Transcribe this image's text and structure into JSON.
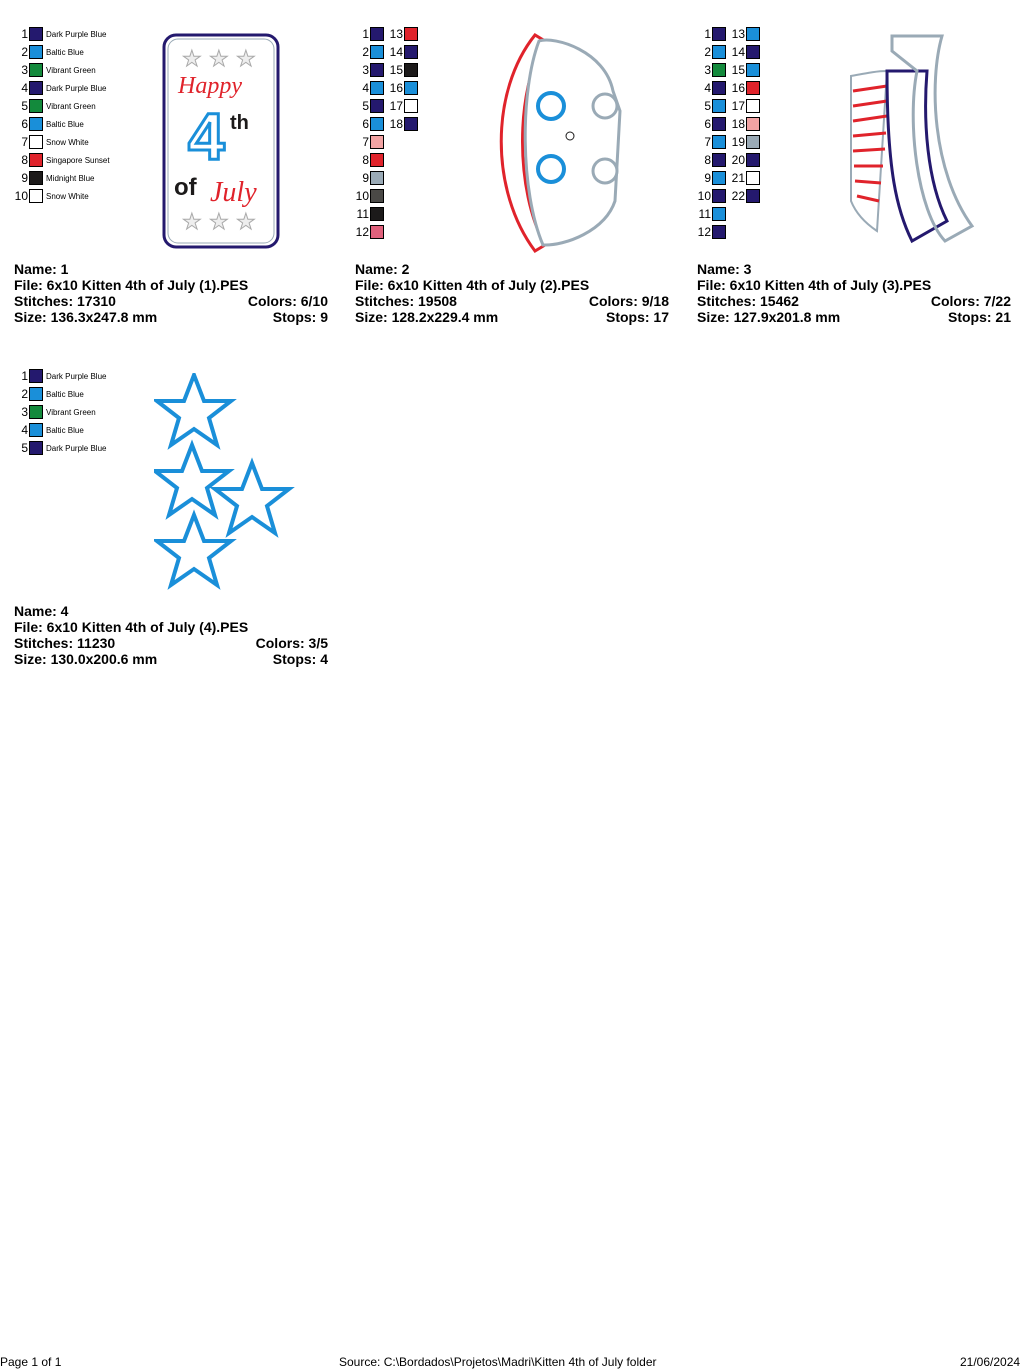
{
  "palette": {
    "navy": "#24196e",
    "blue": "#1a8fd9",
    "green": "#138a3c",
    "red": "#e0232b",
    "pink": "#f2a3a3",
    "gray": "#9aaab6",
    "darkgray": "#4a4946",
    "black": "#1c1a1a",
    "rose": "#e0617c",
    "white": "#ffffff"
  },
  "designs": [
    {
      "name": "Name: 1",
      "file": "File: 6x10 Kitten 4th of July (1).PES",
      "stitches": "Stitches: 17310",
      "colors": "Colors: 6/10",
      "size": "Size: 136.3x247.8 mm",
      "stops": "Stops: 9",
      "thread_list": [
        [
          "1",
          "#24196e",
          "Dark Purple Blue"
        ],
        [
          "2",
          "#1a8fd9",
          "Baltic Blue"
        ],
        [
          "3",
          "#138a3c",
          "Vibrant Green"
        ],
        [
          "4",
          "#24196e",
          "Dark Purple Blue"
        ],
        [
          "5",
          "#138a3c",
          "Vibrant Green"
        ],
        [
          "6",
          "#1a8fd9",
          "Baltic Blue"
        ],
        [
          "7",
          "#ffffff",
          "Snow White"
        ],
        [
          "8",
          "#e0232b",
          "Singapore Sunset"
        ],
        [
          "9",
          "#1c1a1a",
          "Midnight Blue"
        ],
        [
          "10",
          "#ffffff",
          "Snow White"
        ]
      ],
      "art_text": [
        "Happy",
        "4",
        "th",
        "of",
        "July"
      ]
    },
    {
      "name": "Name: 2",
      "file": "File: 6x10 Kitten 4th of July (2).PES",
      "stitches": "Stitches: 19508",
      "colors": "Colors: 9/18",
      "size": "Size: 128.2x229.4 mm",
      "stops": "Stops: 17",
      "thread_list": [
        [
          "1",
          "#24196e"
        ],
        [
          "2",
          "#1a8fd9"
        ],
        [
          "3",
          "#24196e"
        ],
        [
          "4",
          "#1a8fd9"
        ],
        [
          "5",
          "#24196e"
        ],
        [
          "6",
          "#1a8fd9"
        ],
        [
          "7",
          "#f2a3a3"
        ],
        [
          "8",
          "#e0232b"
        ],
        [
          "9",
          "#9aaab6"
        ],
        [
          "10",
          "#4a4946"
        ],
        [
          "11",
          "#1c1a1a"
        ],
        [
          "12",
          "#e0617c"
        ],
        [
          "13",
          "#e0232b"
        ],
        [
          "14",
          "#24196e"
        ],
        [
          "15",
          "#1c1a1a"
        ],
        [
          "16",
          "#1a8fd9"
        ],
        [
          "17",
          "#ffffff"
        ],
        [
          "18",
          "#24196e"
        ]
      ]
    },
    {
      "name": "Name: 3",
      "file": "File: 6x10 Kitten 4th of July (3).PES",
      "stitches": "Stitches: 15462",
      "colors": "Colors: 7/22",
      "size": "Size: 127.9x201.8 mm",
      "stops": "Stops: 21",
      "thread_list": [
        [
          "1",
          "#24196e"
        ],
        [
          "2",
          "#1a8fd9"
        ],
        [
          "3",
          "#138a3c"
        ],
        [
          "4",
          "#24196e"
        ],
        [
          "5",
          "#1a8fd9"
        ],
        [
          "6",
          "#24196e"
        ],
        [
          "7",
          "#1a8fd9"
        ],
        [
          "8",
          "#24196e"
        ],
        [
          "9",
          "#1a8fd9"
        ],
        [
          "10",
          "#24196e"
        ],
        [
          "11",
          "#1a8fd9"
        ],
        [
          "12",
          "#24196e"
        ],
        [
          "13",
          "#1a8fd9"
        ],
        [
          "14",
          "#24196e"
        ],
        [
          "15",
          "#1a8fd9"
        ],
        [
          "16",
          "#e0232b"
        ],
        [
          "17",
          "#ffffff"
        ],
        [
          "18",
          "#f2a3a3"
        ],
        [
          "19",
          "#9aaab6"
        ],
        [
          "20",
          "#24196e"
        ],
        [
          "21",
          "#ffffff"
        ],
        [
          "22",
          "#24196e"
        ]
      ]
    },
    {
      "name": "Name: 4",
      "file": "File: 6x10 Kitten 4th of July (4).PES",
      "stitches": "Stitches: 11230",
      "colors": "Colors: 3/5",
      "size": "Size: 130.0x200.6 mm",
      "stops": "Stops: 4",
      "thread_list": [
        [
          "1",
          "#24196e",
          "Dark Purple Blue"
        ],
        [
          "2",
          "#1a8fd9",
          "Baltic Blue"
        ],
        [
          "3",
          "#138a3c",
          "Vibrant Green"
        ],
        [
          "4",
          "#1a8fd9",
          "Baltic Blue"
        ],
        [
          "5",
          "#24196e",
          "Dark Purple Blue"
        ]
      ]
    }
  ],
  "footer": {
    "page": "Page 1 of 1",
    "source": "Source: C:\\Bordados\\Projetos\\Madri\\Kitten 4th of July folder",
    "date": "21/06/2024"
  }
}
